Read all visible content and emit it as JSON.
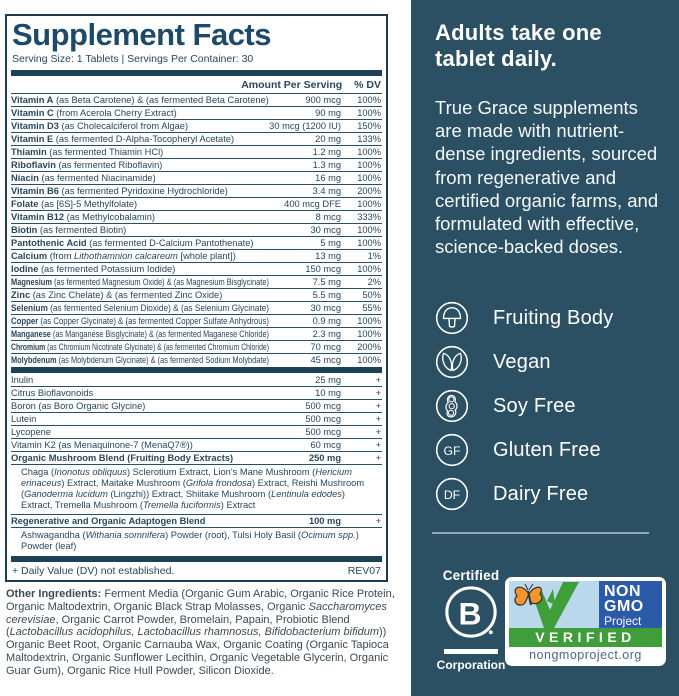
{
  "panel": {
    "title": "Supplement Facts",
    "serving_line": "Serving Size: 1 Tablets | Servings Per Container: 30",
    "amount_header": "Amount Per Serving",
    "dv_header": "% DV",
    "main_rows": [
      {
        "b": "Vitamin A",
        "r": " (as Beta Carotene) & (as fermented Beta Carotene)",
        "a": "900 mcg",
        "d": "100%"
      },
      {
        "b": "Vitamin C",
        "r": " (from Acerola Cherry Extract)",
        "a": "90 mg",
        "d": "100%"
      },
      {
        "b": "Vitamin D3",
        "r": " (as Cholecalciferol from Algae)",
        "a": "30 mcg (1200 IU)",
        "d": "150%"
      },
      {
        "b": "Vitamin E",
        "r": " (as fermented D-Alpha-Tocopheryl Acetate)",
        "a": "20 mg",
        "d": "133%"
      },
      {
        "b": "Thiamin",
        "r": " (as fermented Thiamin HCl)",
        "a": "1.2 mg",
        "d": "100%"
      },
      {
        "b": "Riboflavin",
        "r": " (as fermented Riboflavin)",
        "a": "1.3 mg",
        "d": "100%"
      },
      {
        "b": "Niacin",
        "r": " (as fermented Niacinamide)",
        "a": "16 mg",
        "d": "100%"
      },
      {
        "b": "Vitamin B6",
        "r": " (as fermented Pyridoxine Hydrochloride)",
        "a": "3.4 mg",
        "d": "200%"
      },
      {
        "b": "Folate",
        "r": " (as [6S]-5 Methylfolate)",
        "a": "400 mcg DFE",
        "d": "100%"
      },
      {
        "b": "Vitamin B12",
        "r": " (as Methylcobalamin)",
        "a": "8 mcg",
        "d": "333%"
      },
      {
        "b": "Biotin",
        "r": " (as fermented Biotin)",
        "a": "30 mcg",
        "d": "100%"
      },
      {
        "b": "Pantothenic Acid",
        "r": " (as fermented D-Calcium Pantothenate)",
        "a": "5 mg",
        "d": "100%"
      },
      {
        "b": "Calcium",
        "r": " (from _Lithothamnion calcareum_ [whole plant])",
        "a": "13 mg",
        "d": "1%"
      },
      {
        "b": "Iodine",
        "r": " (as fermented Potassium Iodide)",
        "a": "150 mcg",
        "d": "100%"
      },
      {
        "b": "Magnesium",
        "r": " (as fermented Magnesium Oxide) & (as Magnesium Bisglycinate)",
        "a": "7.5 mg",
        "d": "2%"
      },
      {
        "b": "Zinc",
        "r": " (as Zinc Chelate) & (as fermented Zinc Oxide)",
        "a": "5.5 mg",
        "d": "50%"
      },
      {
        "b": "Selenium",
        "r": " (as fermented Selenium Dioxide) & (as Selenium Glycinate)",
        "a": "30 mcg",
        "d": "55%"
      },
      {
        "b": "Copper",
        "r": " (as Copper Glycinate) & (as fermented Copper Sulfate Anhydrous)",
        "a": "0.9 mg",
        "d": "100%"
      },
      {
        "b": "Manganese",
        "r": " (as Manganese Bisglycinate) & (as fermented Maganese Chloride)",
        "a": "2.3 mg",
        "d": "100%"
      },
      {
        "b": "Chromium",
        "r": " (as Chromium Nicotinate Glycinate) & (as fermented Chromium Chloride)",
        "a": "70 mcg",
        "d": "200%"
      },
      {
        "b": "Molybdenum",
        "r": " (as Molybdenum Glycinate) & (as fermented Sodium Molybdate)",
        "a": "45 mcg",
        "d": "100%"
      }
    ],
    "other_rows": [
      {
        "b": "",
        "r": "Inulin",
        "a": "25 mg",
        "d": "+"
      },
      {
        "b": "",
        "r": "Citrus Bioflavonoids",
        "a": "10 mg",
        "d": "+"
      },
      {
        "b": "",
        "r": "Boron (as Boro Organic Glycine)",
        "a": "500 mcg",
        "d": "+"
      },
      {
        "b": "",
        "r": "Lutein",
        "a": "500 mcg",
        "d": "+"
      },
      {
        "b": "",
        "r": "Lycopene",
        "a": "500 mcg",
        "d": "+"
      },
      {
        "b": "",
        "r": "Vitamin K2 (as Menaquinone-7 (MenaQ7®))",
        "a": "60 mcg",
        "d": "+"
      }
    ],
    "blend_rows": [
      {
        "b": "Organic Mushroom Blend (Fruiting Body Extracts)",
        "r": "",
        "a": "250 mg",
        "d": "+",
        "desc": "Chaga (_Inonotus obliquus_) Sclerotium Extract, Lion's Mane Mushroom (_Hericium erinaceus_) Extract, Maitake Mushroom (_Grifola frondosa_) Extract, Reishi Mushroom (_Ganoderma lucidum_ (Lingzhi)) Extract, Shiitake Mushroom (_Lentinula edodes_) Extract, Tremella Mushroom (_Tremella fuciformis_) Extract"
      },
      {
        "b": "Regenerative and Organic Adaptogen Blend",
        "r": "",
        "a": "100 mg",
        "d": "+",
        "desc": "Ashwagandha (_Withania somnifera_) Powder (root), Tulsi Holy Basil (_Ocimum spp._) Powder (leaf)"
      }
    ],
    "footnote": "+ Daily Value (DV) not established.",
    "rev": "REV07"
  },
  "other_ingredients": {
    "label": "Other Ingredients:",
    "text": " Ferment Media (Organic Gum Arabic, Organic Rice Protein, Organic Maltodextrin, Organic Black Strap Molasses, Organic _Saccharomyces cerevisiae_, Organic Carrot Powder, Bromelain, Papain, Probiotic Blend (_Lactobacillus acidophilus, Lactobacillus rhamnosus, Bifidobacterium bifidum_)) Organic Beet Root, Organic Carnauba Wax, Organic Coating (Organic Tapioca Maltodextrin, Organic Sunflower Lecithin, Organic Vegetable Glycerin, Organic Guar Gum), Organic Rice Hull Powder, Silicon Dioxide."
  },
  "sidebar": {
    "heading": "Adults take one tablet daily.",
    "paragraph": "True Grace supplements are made with nutrient-dense ingredients, sourced from regenerative and certified organic farms, and formulated  with effective, science-backed doses.",
    "features": [
      {
        "icon": "mushroom-icon",
        "badge": "",
        "label": "Fruiting Body"
      },
      {
        "icon": "vegan-leaves-icon",
        "badge": "",
        "label": "Vegan"
      },
      {
        "icon": "soybean-pod-icon",
        "badge": "",
        "label": "Soy Free"
      },
      {
        "icon": "gluten-free-icon",
        "badge": "GF",
        "label": "Gluten Free"
      },
      {
        "icon": "dairy-free-icon",
        "badge": "DF",
        "label": "Dairy Free"
      }
    ],
    "bcorp": {
      "top": "Certified",
      "letter": "B",
      "bottom": "Corporation"
    },
    "nongmo": {
      "title_lines": [
        "NON",
        "GMO",
        "Project"
      ],
      "verified": "VERIFIED",
      "url": "nongmoproject.org"
    }
  },
  "colors": {
    "sidebar_bg": "#2c5063",
    "panel_navy": "#1d4156",
    "text_navy": "#26475f",
    "badge_blue": "#2a5aa8",
    "badge_green": "#3f9e3a",
    "badge_sky": "#b9d8ec",
    "butterfly_orange": "#f2952e"
  }
}
